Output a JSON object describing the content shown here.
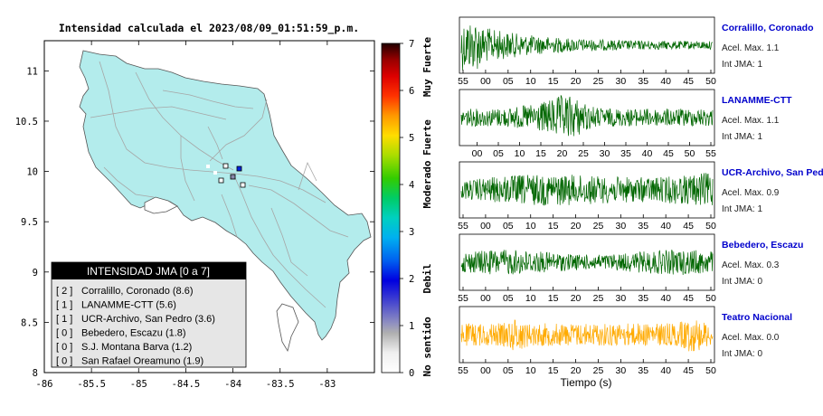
{
  "map": {
    "title": "Intensidad calculada el 2023/08/09_01:51:59_p.m.",
    "x_ticks": [
      "-86",
      "-85.5",
      "-85",
      "-84.5",
      "-84",
      "-83.5",
      "-83"
    ],
    "y_ticks": [
      "11",
      "10.5",
      "10",
      "9.5",
      "9",
      "8.5",
      "8"
    ],
    "xlim": [
      -86,
      -82.5
    ],
    "ylim": [
      8,
      11.3
    ],
    "colors": {
      "land": "#b3ecec",
      "roads": "#a6a6a6",
      "border": "#555555"
    }
  },
  "colorbar": {
    "ticks": [
      "0",
      "1",
      "2",
      "3",
      "4",
      "5",
      "6",
      "7"
    ],
    "labels": [
      "No sentido",
      "Debil",
      "Moderado",
      "Fuerte",
      "Muy Fuerte"
    ]
  },
  "legend": {
    "title": "INTENSIDAD JMA [0 a 7]",
    "rows": [
      {
        "code": "[ 2 ]",
        "name": "Corralillo, Coronado (8.6)"
      },
      {
        "code": "[ 1 ]",
        "name": "LANAMME-CTT (5.6)"
      },
      {
        "code": "[ 1 ]",
        "name": "UCR-Archivo, San Pedro (3.6)"
      },
      {
        "code": "[ 0 ]",
        "name": "Bebedero, Escazu (1.8)"
      },
      {
        "code": "[ 0 ]",
        "name": "S.J. Montana Barva (1.2)"
      },
      {
        "code": "[ 0 ]",
        "name": "San Rafael Oreamuno (1.9)"
      }
    ]
  },
  "chart_data": {
    "type": "line",
    "xlabel": "Tiempo (s)",
    "waveforms": [
      {
        "name": "Corralillo, Coronado",
        "accel_label": "Acel. Max. 1.1",
        "int_label": "Int JMA: 1",
        "color": "#006600",
        "ticks": [
          "55",
          "00",
          "05",
          "10",
          "15",
          "20",
          "25",
          "30",
          "35",
          "40",
          "45",
          "50"
        ]
      },
      {
        "name": "LANAMME-CTT",
        "accel_label": "Acel. Max. 1.1",
        "int_label": "Int JMA: 1",
        "color": "#006600",
        "ticks": [
          "00",
          "05",
          "10",
          "15",
          "20",
          "25",
          "30",
          "35",
          "40",
          "45",
          "50",
          "55"
        ]
      },
      {
        "name": "UCR-Archivo, San Pedro",
        "accel_label": "Acel. Max. 0.9",
        "int_label": "Int JMA: 1",
        "color": "#006600",
        "ticks": [
          "55",
          "00",
          "05",
          "10",
          "15",
          "20",
          "25",
          "30",
          "35",
          "40",
          "45",
          "50"
        ]
      },
      {
        "name": "Bebedero, Escazu",
        "accel_label": "Acel. Max. 0.3",
        "int_label": "Int JMA: 0",
        "color": "#006600",
        "ticks": [
          "55",
          "00",
          "05",
          "10",
          "15",
          "20",
          "25",
          "30",
          "35",
          "40",
          "45",
          "50"
        ]
      },
      {
        "name": "Teatro Nacional",
        "accel_label": "Acel. Max. 0.0",
        "int_label": "Int JMA: 0",
        "color": "#ffaa00",
        "ticks": [
          "55",
          "00",
          "05",
          "10",
          "15",
          "20",
          "25",
          "30",
          "35",
          "40",
          "45",
          "50"
        ]
      }
    ]
  }
}
